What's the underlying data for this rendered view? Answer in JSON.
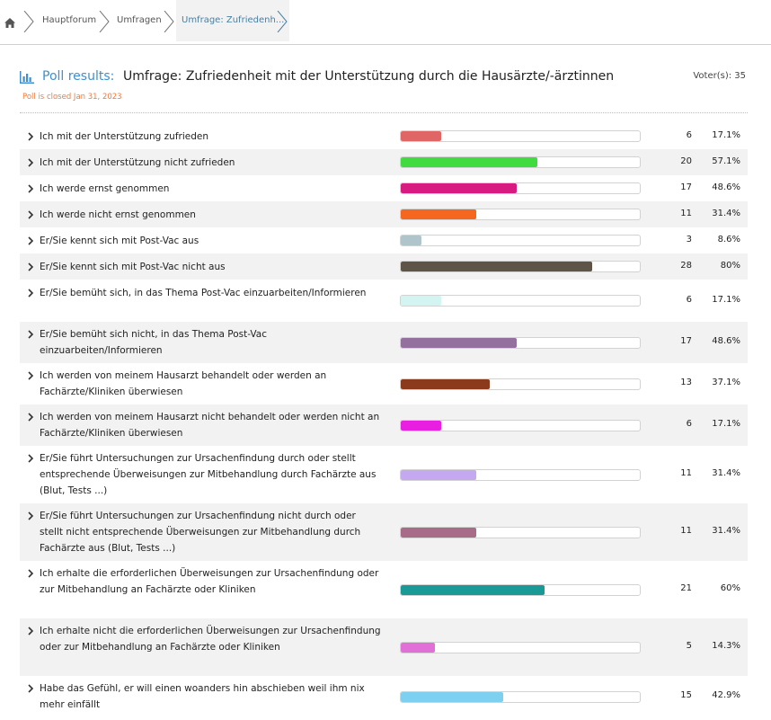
{
  "breadcrumb": {
    "items": [
      {
        "label": "Hauptforum"
      },
      {
        "label": "Umfragen"
      },
      {
        "label": "Umfrage: Zufriedenh..."
      }
    ]
  },
  "poll": {
    "label": "Poll results:",
    "title": "Umfrage: Zufriedenheit mit der Unterstützung durch die Hausärzte/-ärztinnen",
    "closed_text": "Poll is closed Jan 31, 2023",
    "voters_text": "Voter(s): 35",
    "accent_color": "#3e8fd0",
    "closed_color": "#f07a3a",
    "options": [
      {
        "text": "Ich mit der Unterstützung zufrieden",
        "votes": "6",
        "percent": "17.1%",
        "fraction": 0.171,
        "color": "#e06666"
      },
      {
        "text": "Ich mit der Unterstützung nicht zufrieden",
        "votes": "20",
        "percent": "57.1%",
        "fraction": 0.571,
        "color": "#3fdb3f"
      },
      {
        "text": "Ich werde ernst genommen",
        "votes": "17",
        "percent": "48.6%",
        "fraction": 0.486,
        "color": "#d81b80"
      },
      {
        "text": "Ich werde nicht ernst genommen",
        "votes": "11",
        "percent": "31.4%",
        "fraction": 0.314,
        "color": "#f5661f"
      },
      {
        "text": "Er/Sie kennt sich mit Post-Vac aus",
        "votes": "3",
        "percent": "8.6%",
        "fraction": 0.086,
        "color": "#b0c4cc"
      },
      {
        "text": "Er/Sie kennt sich mit Post-Vac nicht aus",
        "votes": "28",
        "percent": "80%",
        "fraction": 0.8,
        "color": "#5e5548"
      },
      {
        "text": "Er/Sie bemüht sich, in das Thema Post-Vac einzuarbeiten/Informieren",
        "votes": "6",
        "percent": "17.1%",
        "fraction": 0.171,
        "color": "#d2f5f2"
      },
      {
        "text": "Er/Sie bemüht sich nicht, in das Thema Post-Vac einzuarbeiten/Informieren",
        "votes": "17",
        "percent": "48.6%",
        "fraction": 0.486,
        "color": "#94709e"
      },
      {
        "text": "Ich werden von meinem Hausarzt behandelt oder werden an Fachärzte/Kliniken überwiesen",
        "votes": "13",
        "percent": "37.1%",
        "fraction": 0.371,
        "color": "#8c3a1c"
      },
      {
        "text": "Ich werden von meinem Hausarzt nicht behandelt oder werden nicht an Fachärzte/Kliniken überwiesen",
        "votes": "6",
        "percent": "17.1%",
        "fraction": 0.171,
        "color": "#e81ee0"
      },
      {
        "text": "Er/Sie führt Untersuchungen zur Ursachenfindung durch oder stellt entsprechende Überweisungen zur Mitbehandlung durch Fachärzte aus (Blut, Tests ...)",
        "votes": "11",
        "percent": "31.4%",
        "fraction": 0.314,
        "color": "#c4a8f0"
      },
      {
        "text": "Er/Sie führt Untersuchungen zur Ursachenfindung nicht durch oder stellt nicht entsprechende Überweisungen zur Mitbehandlung durch Fachärzte aus (Blut, Tests ...)",
        "votes": "11",
        "percent": "31.4%",
        "fraction": 0.314,
        "color": "#a86c88"
      },
      {
        "text": "Ich erhalte die erforderlichen Überweisungen zur Ursachenfindung oder zur Mitbehandlung an Fachärzte oder Kliniken",
        "votes": "21",
        "percent": "60%",
        "fraction": 0.6,
        "color": "#1a9a96"
      },
      {
        "text": "Ich erhalte nicht die erforderlichen Überweisungen zur Ursachenfindung oder zur Mitbehandlung an Fachärzte oder Kliniken",
        "votes": "5",
        "percent": "14.3%",
        "fraction": 0.143,
        "color": "#e070d8"
      },
      {
        "text": "Habe das Gefühl, er will einen woanders hin abschieben weil ihm nix mehr einfällt",
        "votes": "15",
        "percent": "42.9%",
        "fraction": 0.429,
        "color": "#7dd0f0"
      }
    ]
  }
}
